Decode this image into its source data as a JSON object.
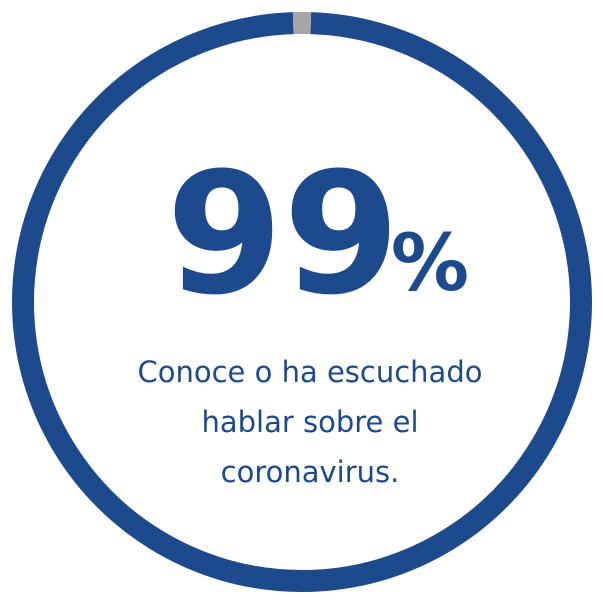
{
  "chart_data": {
    "type": "donut",
    "values": [
      99,
      1
    ],
    "colors": [
      "#1d4a8c",
      "#a6a6a6"
    ],
    "unit": "%",
    "caption_lines": [
      "Conoce o ha escuchado",
      "hablar sobre el",
      "coronavirus."
    ]
  }
}
